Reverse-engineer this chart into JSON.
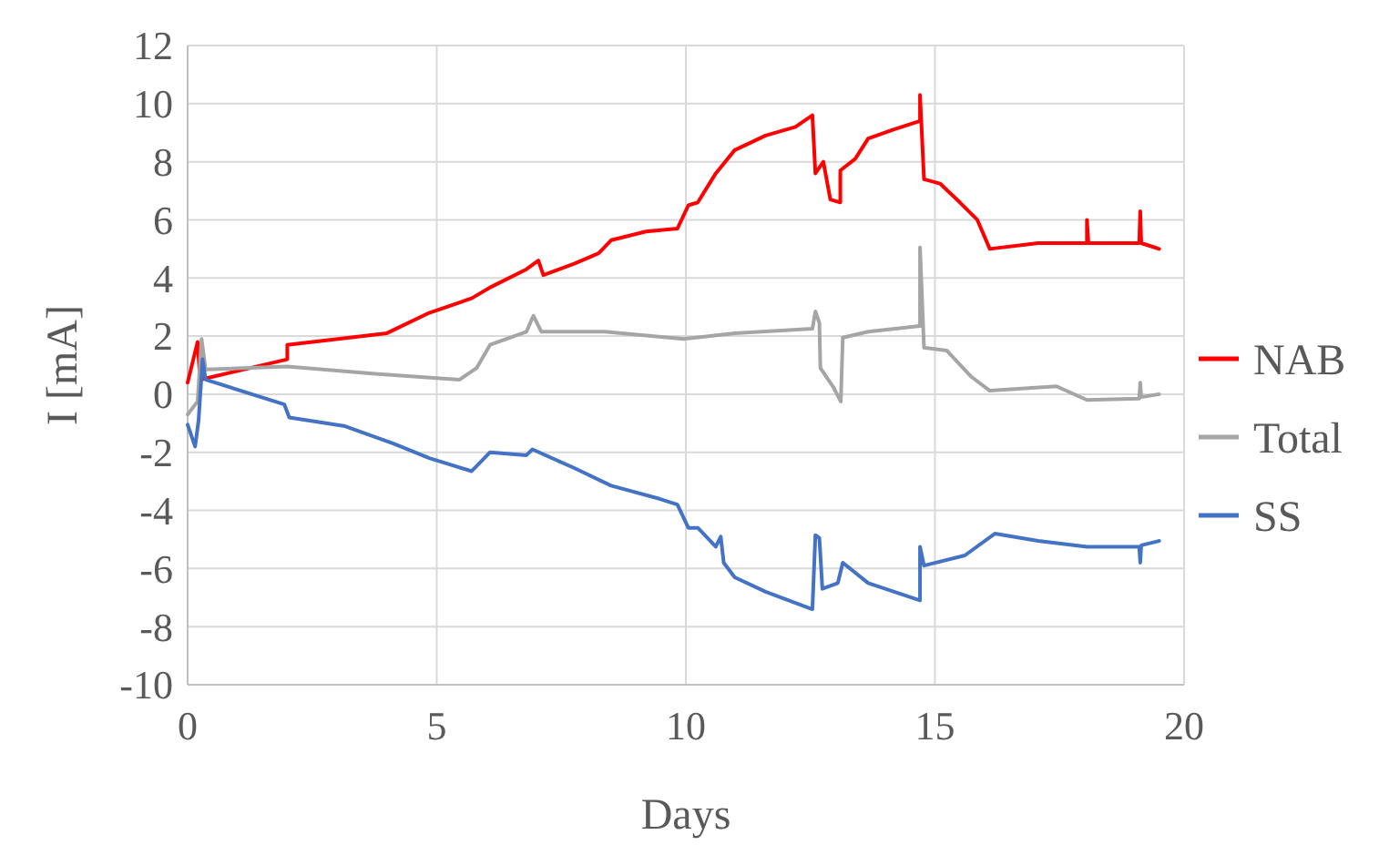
{
  "chart_data": {
    "type": "line",
    "xlabel": "Days",
    "ylabel": "I [mA]",
    "xlim": [
      0,
      20
    ],
    "xticks": [
      0,
      5,
      10,
      15,
      20
    ],
    "ylim": [
      -10,
      12
    ],
    "yticks": [
      -10,
      -8,
      -6,
      -4,
      -2,
      0,
      2,
      4,
      6,
      8,
      10,
      12
    ],
    "grid": true,
    "legend": "right",
    "line_style": "solid",
    "marker": "none",
    "series": [
      {
        "name": "NAB",
        "color": "#ff0000",
        "x": [
          0,
          0.2,
          0.25,
          2.0,
          2.0,
          4.0,
          4.85,
          5.7,
          6.1,
          6.8,
          7.04,
          7.14,
          7.77,
          8.25,
          8.5,
          9.2,
          9.83,
          10.05,
          10.24,
          10.6,
          10.98,
          11.6,
          12.2,
          12.54,
          12.6,
          12.76,
          12.9,
          13.1,
          13.1,
          13.4,
          13.66,
          14.15,
          14.7,
          14.7,
          14.78,
          15.1,
          15.5,
          15.85,
          16.1,
          17.07,
          18.05,
          18.05,
          18.08,
          19.1,
          19.12,
          19.14,
          19.5
        ],
        "values": [
          0.4,
          1.8,
          0.5,
          1.2,
          1.7,
          2.1,
          2.8,
          3.3,
          3.7,
          4.3,
          4.6,
          4.1,
          4.5,
          4.85,
          5.3,
          5.6,
          5.7,
          6.5,
          6.6,
          7.6,
          8.4,
          8.9,
          9.2,
          9.6,
          7.6,
          8.0,
          6.7,
          6.6,
          7.7,
          8.1,
          8.8,
          9.1,
          9.4,
          10.3,
          7.4,
          7.25,
          6.6,
          6.0,
          5.0,
          5.2,
          5.2,
          6.0,
          5.2,
          5.2,
          6.3,
          5.2,
          5.0
        ]
      },
      {
        "name": "Total",
        "color": "#a5a5a5",
        "x": [
          0,
          0.2,
          0.28,
          0.36,
          2.0,
          3.76,
          5.46,
          5.8,
          6.07,
          6.8,
          6.94,
          7.1,
          8.37,
          9.95,
          10.98,
          12.54,
          12.6,
          12.68,
          12.7,
          12.95,
          13.11,
          13.15,
          13.66,
          14.7,
          14.7,
          14.78,
          15.24,
          15.73,
          16.1,
          17.44,
          18.05,
          19.1,
          19.12,
          19.14,
          19.5
        ],
        "values": [
          -0.7,
          -0.25,
          1.9,
          0.85,
          0.95,
          0.7,
          0.5,
          0.9,
          1.7,
          2.15,
          2.7,
          2.15,
          2.15,
          1.9,
          2.1,
          2.25,
          2.85,
          2.45,
          0.9,
          0.27,
          -0.25,
          1.95,
          2.15,
          2.35,
          5.05,
          1.6,
          1.5,
          0.6,
          0.12,
          0.27,
          -0.2,
          -0.15,
          0.4,
          -0.1,
          0
        ]
      },
      {
        "name": "SS",
        "color": "#4472c4",
        "x": [
          0,
          0.15,
          0.22,
          0.3,
          0.36,
          1.94,
          2.04,
          3.16,
          4.13,
          4.85,
          5.7,
          6.07,
          6.8,
          6.92,
          7.77,
          8.5,
          9.47,
          9.83,
          10.05,
          10.24,
          10.6,
          10.7,
          10.76,
          10.98,
          11.6,
          12.54,
          12.6,
          12.68,
          12.74,
          13.05,
          13.15,
          13.66,
          14.7,
          14.7,
          14.78,
          15.6,
          16.2,
          17.07,
          18.05,
          19.1,
          19.12,
          19.14,
          19.5
        ],
        "values": [
          -1.05,
          -1.8,
          -0.9,
          1.2,
          0.5,
          -0.35,
          -0.8,
          -1.1,
          -1.7,
          -2.2,
          -2.65,
          -2.0,
          -2.1,
          -1.9,
          -2.55,
          -3.15,
          -3.6,
          -3.8,
          -4.6,
          -4.6,
          -5.25,
          -4.9,
          -5.8,
          -6.3,
          -6.8,
          -7.4,
          -4.85,
          -4.95,
          -6.7,
          -6.5,
          -5.8,
          -6.5,
          -7.1,
          -5.25,
          -5.9,
          -5.55,
          -4.8,
          -5.05,
          -5.25,
          -5.25,
          -5.8,
          -5.2,
          -5.05
        ]
      }
    ]
  }
}
